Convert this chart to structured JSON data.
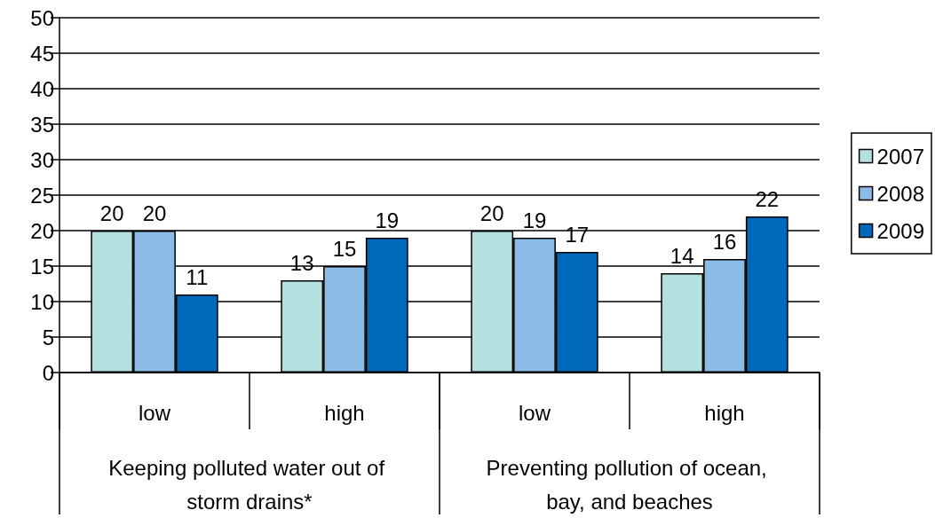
{
  "chart_data": {
    "type": "bar",
    "categories": [
      "low",
      "high",
      "low",
      "high"
    ],
    "annotations": [
      "Keeping polluted water out of storm drains*",
      "Preventing pollution of ocean, bay, and beaches"
    ],
    "series": [
      {
        "name": "2007",
        "color": "#b4e0e0",
        "values": [
          20,
          13,
          20,
          14
        ]
      },
      {
        "name": "2008",
        "color": "#8cbce6",
        "values": [
          20,
          15,
          19,
          16
        ]
      },
      {
        "name": "2009",
        "color": "#0068b8",
        "values": [
          11,
          19,
          17,
          22
        ]
      }
    ],
    "ylim": [
      0,
      50
    ],
    "yticks": [
      0,
      5,
      10,
      15,
      20,
      25,
      30,
      35,
      40,
      45,
      50
    ],
    "grid": "y",
    "legend": "right",
    "data_labels": true
  }
}
